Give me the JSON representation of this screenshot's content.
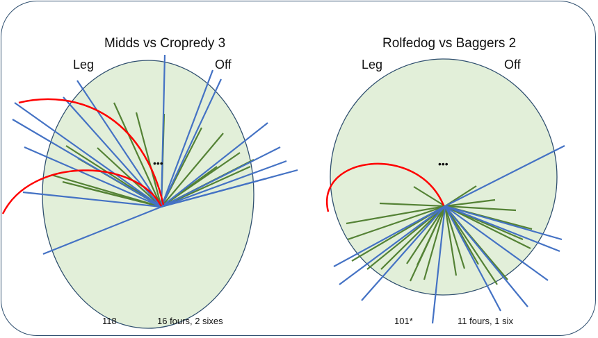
{
  "left_panel": {
    "title": "Midds vs Cropredy 3",
    "leg_label": "Leg",
    "off_label": "Off",
    "score": "118",
    "boundaries": "16 fours, 2 sixes",
    "ellipsis": "•••"
  },
  "right_panel": {
    "title": "Rolfedog vs Baggers 2",
    "leg_label": "Leg",
    "off_label": "Off",
    "score": "101*",
    "boundaries": "11 fours, 1 six",
    "ellipsis": "•••"
  },
  "colors": {
    "field": "#e2efd9",
    "field_border": "#2f4f6f",
    "six_line": "#4472c4",
    "four_line": "#548235",
    "boundary_arc": "#ff0000",
    "frame_border": "#2f4f6f"
  }
}
